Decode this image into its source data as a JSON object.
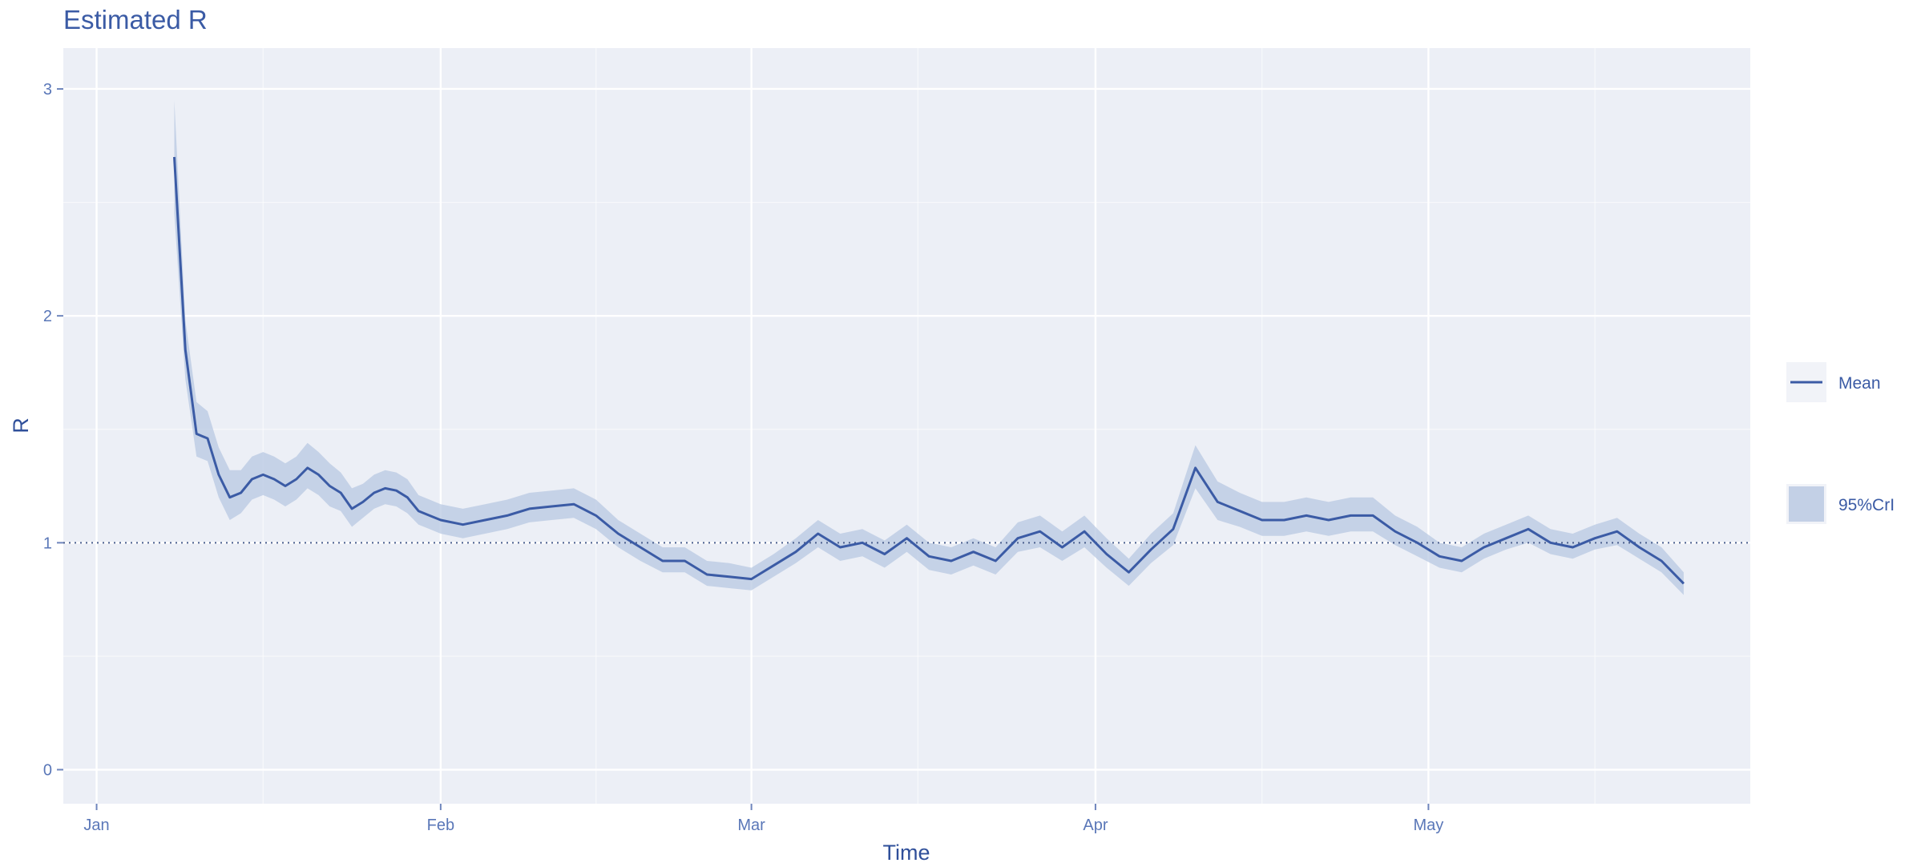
{
  "chart_data": {
    "type": "line",
    "title": "Estimated R",
    "xlabel": "Time",
    "ylabel": "R",
    "x_ticks": [
      "Jan",
      "Feb",
      "Mar",
      "Apr",
      "May"
    ],
    "y_ticks": [
      "0",
      "1",
      "2",
      "3"
    ],
    "x_domain": [
      "2020-12-29",
      "2021-05-30"
    ],
    "ylim": [
      -0.15,
      3.18
    ],
    "grid": true,
    "reference_line": {
      "y": 1,
      "style": "dotted"
    },
    "legend": {
      "placement": "right",
      "entries": [
        "Mean",
        "95%CrI"
      ]
    },
    "colors": {
      "line": "#3b5ba5",
      "band": "#b8c8e2",
      "panel": "#eceff6",
      "gridline": "#ffffff",
      "text": "#3b5ba5"
    },
    "series": [
      {
        "name": "Mean",
        "x": [
          "2021-01-08",
          "2021-01-09",
          "2021-01-10",
          "2021-01-11",
          "2021-01-12",
          "2021-01-13",
          "2021-01-14",
          "2021-01-15",
          "2021-01-16",
          "2021-01-17",
          "2021-01-18",
          "2021-01-19",
          "2021-01-20",
          "2021-01-21",
          "2021-01-22",
          "2021-01-23",
          "2021-01-24",
          "2021-01-25",
          "2021-01-26",
          "2021-01-27",
          "2021-01-28",
          "2021-01-29",
          "2021-01-30",
          "2021-01-31",
          "2021-02-01",
          "2021-02-03",
          "2021-02-05",
          "2021-02-07",
          "2021-02-09",
          "2021-02-11",
          "2021-02-13",
          "2021-02-15",
          "2021-02-17",
          "2021-02-19",
          "2021-02-21",
          "2021-02-23",
          "2021-02-25",
          "2021-02-27",
          "2021-03-01",
          "2021-03-03",
          "2021-03-05",
          "2021-03-07",
          "2021-03-09",
          "2021-03-11",
          "2021-03-13",
          "2021-03-15",
          "2021-03-17",
          "2021-03-19",
          "2021-03-21",
          "2021-03-23",
          "2021-03-25",
          "2021-03-27",
          "2021-03-29",
          "2021-03-31",
          "2021-04-02",
          "2021-04-04",
          "2021-04-06",
          "2021-04-08",
          "2021-04-10",
          "2021-04-12",
          "2021-04-14",
          "2021-04-16",
          "2021-04-18",
          "2021-04-20",
          "2021-04-22",
          "2021-04-24",
          "2021-04-26",
          "2021-04-28",
          "2021-04-30",
          "2021-05-02",
          "2021-05-04",
          "2021-05-06",
          "2021-05-08",
          "2021-05-10",
          "2021-05-12",
          "2021-05-14",
          "2021-05-16",
          "2021-05-18",
          "2021-05-20",
          "2021-05-22",
          "2021-05-24"
        ],
        "y": [
          2.7,
          1.85,
          1.48,
          1.46,
          1.3,
          1.2,
          1.22,
          1.28,
          1.3,
          1.28,
          1.25,
          1.28,
          1.33,
          1.3,
          1.25,
          1.22,
          1.15,
          1.18,
          1.22,
          1.24,
          1.23,
          1.2,
          1.14,
          1.12,
          1.1,
          1.08,
          1.1,
          1.12,
          1.15,
          1.16,
          1.17,
          1.12,
          1.04,
          0.98,
          0.92,
          0.92,
          0.86,
          0.85,
          0.84,
          0.9,
          0.96,
          1.04,
          0.98,
          1.0,
          0.95,
          1.02,
          0.94,
          0.92,
          0.96,
          0.92,
          1.02,
          1.05,
          0.98,
          1.05,
          0.95,
          0.87,
          0.97,
          1.06,
          1.33,
          1.18,
          1.14,
          1.1,
          1.1,
          1.12,
          1.1,
          1.12,
          1.12,
          1.05,
          1.0,
          0.94,
          0.92,
          0.98,
          1.02,
          1.06,
          1.0,
          0.98,
          1.02,
          1.05,
          0.98,
          0.92,
          0.82
        ]
      },
      {
        "name": "95%CrI",
        "x": [
          "2021-01-08",
          "2021-01-09",
          "2021-01-10",
          "2021-01-11",
          "2021-01-12",
          "2021-01-13",
          "2021-01-14",
          "2021-01-15",
          "2021-01-16",
          "2021-01-17",
          "2021-01-18",
          "2021-01-19",
          "2021-01-20",
          "2021-01-21",
          "2021-01-22",
          "2021-01-23",
          "2021-01-24",
          "2021-01-25",
          "2021-01-26",
          "2021-01-27",
          "2021-01-28",
          "2021-01-29",
          "2021-01-30",
          "2021-01-31",
          "2021-02-01",
          "2021-02-03",
          "2021-02-05",
          "2021-02-07",
          "2021-02-09",
          "2021-02-11",
          "2021-02-13",
          "2021-02-15",
          "2021-02-17",
          "2021-02-19",
          "2021-02-21",
          "2021-02-23",
          "2021-02-25",
          "2021-02-27",
          "2021-03-01",
          "2021-03-03",
          "2021-03-05",
          "2021-03-07",
          "2021-03-09",
          "2021-03-11",
          "2021-03-13",
          "2021-03-15",
          "2021-03-17",
          "2021-03-19",
          "2021-03-21",
          "2021-03-23",
          "2021-03-25",
          "2021-03-27",
          "2021-03-29",
          "2021-03-31",
          "2021-04-02",
          "2021-04-04",
          "2021-04-06",
          "2021-04-08",
          "2021-04-10",
          "2021-04-12",
          "2021-04-14",
          "2021-04-16",
          "2021-04-18",
          "2021-04-20",
          "2021-04-22",
          "2021-04-24",
          "2021-04-26",
          "2021-04-28",
          "2021-04-30",
          "2021-05-02",
          "2021-05-04",
          "2021-05-06",
          "2021-05-08",
          "2021-05-10",
          "2021-05-12",
          "2021-05-14",
          "2021-05-16",
          "2021-05-18",
          "2021-05-20",
          "2021-05-22",
          "2021-05-24"
        ],
        "lower": [
          2.45,
          1.72,
          1.38,
          1.36,
          1.2,
          1.1,
          1.13,
          1.19,
          1.21,
          1.19,
          1.16,
          1.19,
          1.24,
          1.21,
          1.16,
          1.14,
          1.07,
          1.11,
          1.15,
          1.17,
          1.16,
          1.13,
          1.08,
          1.06,
          1.04,
          1.02,
          1.04,
          1.06,
          1.09,
          1.1,
          1.11,
          1.06,
          0.98,
          0.92,
          0.87,
          0.87,
          0.81,
          0.8,
          0.79,
          0.85,
          0.91,
          0.98,
          0.92,
          0.94,
          0.89,
          0.96,
          0.88,
          0.86,
          0.9,
          0.86,
          0.96,
          0.98,
          0.92,
          0.98,
          0.89,
          0.81,
          0.91,
          0.99,
          1.24,
          1.1,
          1.07,
          1.03,
          1.03,
          1.05,
          1.03,
          1.05,
          1.05,
          0.99,
          0.94,
          0.89,
          0.87,
          0.93,
          0.97,
          1.0,
          0.95,
          0.93,
          0.97,
          0.99,
          0.93,
          0.87,
          0.77
        ],
        "upper": [
          2.95,
          1.98,
          1.62,
          1.58,
          1.42,
          1.32,
          1.32,
          1.38,
          1.4,
          1.38,
          1.35,
          1.38,
          1.44,
          1.4,
          1.35,
          1.31,
          1.24,
          1.26,
          1.3,
          1.32,
          1.31,
          1.28,
          1.21,
          1.19,
          1.17,
          1.15,
          1.17,
          1.19,
          1.22,
          1.23,
          1.24,
          1.19,
          1.1,
          1.04,
          0.98,
          0.98,
          0.92,
          0.91,
          0.89,
          0.95,
          1.02,
          1.1,
          1.04,
          1.06,
          1.01,
          1.08,
          1.0,
          0.98,
          1.02,
          0.98,
          1.09,
          1.12,
          1.05,
          1.12,
          1.02,
          0.93,
          1.04,
          1.13,
          1.43,
          1.27,
          1.22,
          1.18,
          1.18,
          1.2,
          1.18,
          1.2,
          1.2,
          1.12,
          1.07,
          1.0,
          0.98,
          1.04,
          1.08,
          1.12,
          1.06,
          1.04,
          1.08,
          1.11,
          1.04,
          0.98,
          0.87
        ]
      }
    ]
  }
}
